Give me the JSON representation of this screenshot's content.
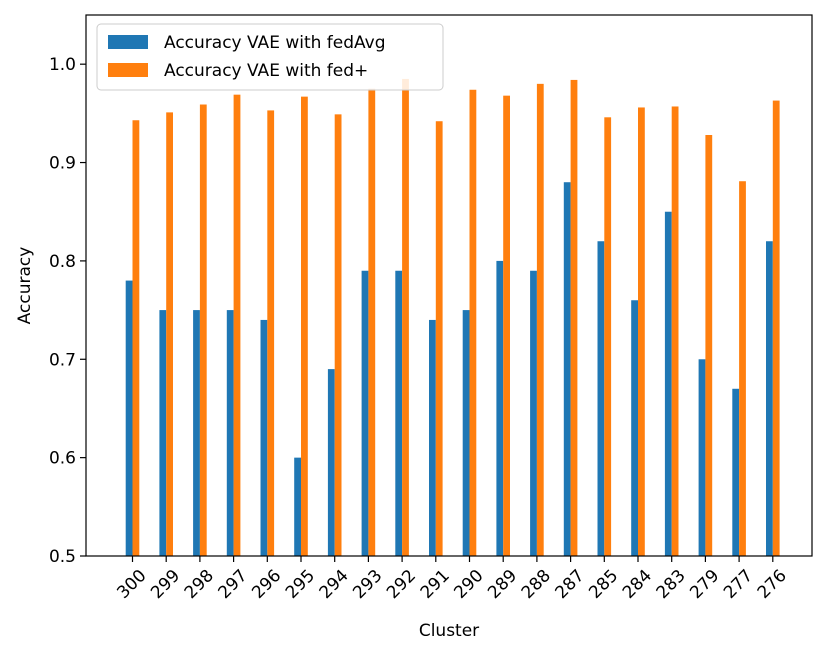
{
  "chart_data": {
    "type": "bar",
    "xlabel": "Cluster",
    "ylabel": "Accuracy",
    "ylim": [
      0.5,
      1.05
    ],
    "yticks": [
      "0.5",
      "0.6",
      "0.7",
      "0.8",
      "0.9",
      "1.0"
    ],
    "grid": false,
    "legend_position": "top-left",
    "categories": [
      "300",
      "299",
      "298",
      "297",
      "296",
      "295",
      "294",
      "293",
      "292",
      "291",
      "290",
      "289",
      "288",
      "287",
      "285",
      "284",
      "283",
      "279",
      "277",
      "276"
    ],
    "series": [
      {
        "name": "Accuracy VAE with fedAvg",
        "color": "#1f77b4",
        "values": [
          0.78,
          0.75,
          0.75,
          0.75,
          0.74,
          0.6,
          0.69,
          0.79,
          0.79,
          0.74,
          0.75,
          0.8,
          0.79,
          0.88,
          0.82,
          0.76,
          0.85,
          0.7,
          0.67,
          0.82
        ]
      },
      {
        "name": "Accuracy VAE with fed+",
        "color": "#ff7f0e",
        "values": [
          0.943,
          0.951,
          0.959,
          0.969,
          0.953,
          0.967,
          0.949,
          0.975,
          0.985,
          0.942,
          0.974,
          0.968,
          0.98,
          0.984,
          0.946,
          0.956,
          0.957,
          0.928,
          0.881,
          0.963
        ]
      }
    ]
  }
}
